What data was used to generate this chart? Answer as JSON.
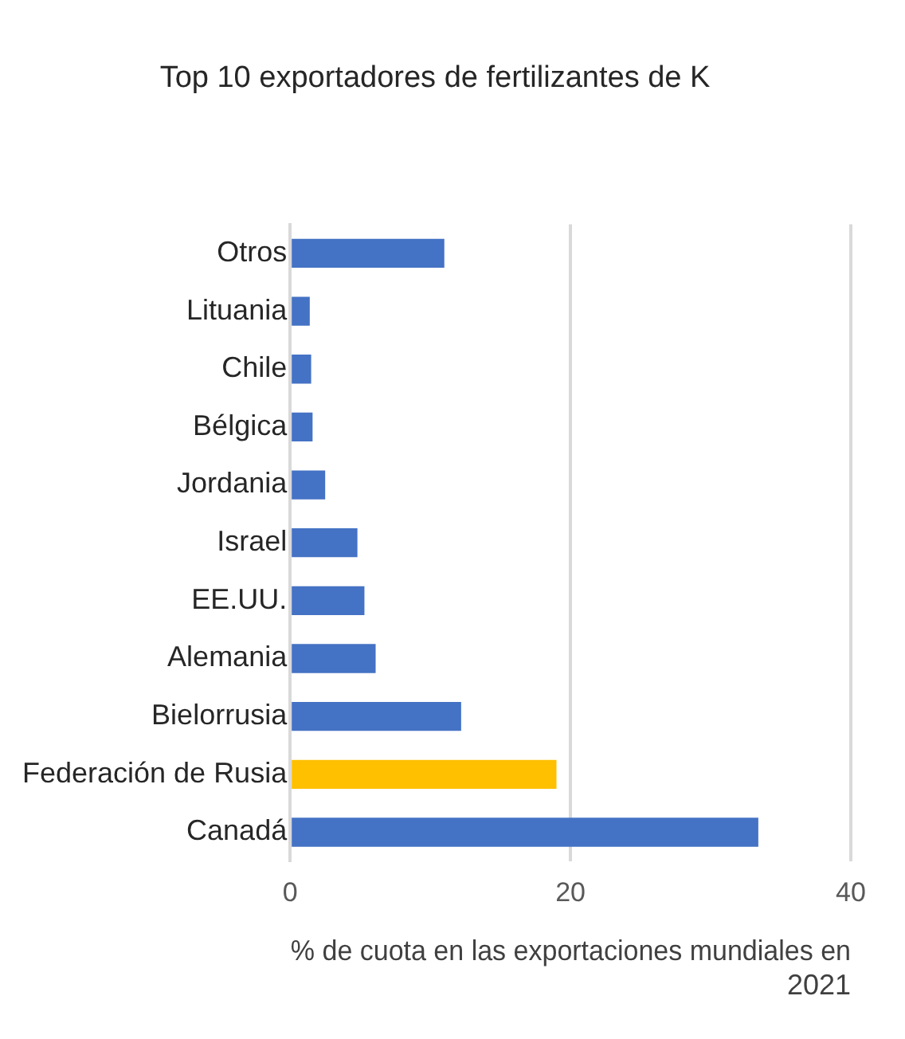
{
  "chart_data": {
    "type": "bar",
    "orientation": "horizontal",
    "title": "Top 10 exportadores de fertilizantes de K",
    "xlabel": "% de cuota en las exportaciones mundiales en 2021",
    "categories": [
      "Otros",
      "Lituania",
      "Chile",
      "Bélgica",
      "Jordania",
      "Israel",
      "EE.UU.",
      "Alemania",
      "Bielorrusia",
      "Federación de Rusia",
      "Canadá"
    ],
    "values": [
      11.0,
      1.4,
      1.5,
      1.6,
      2.5,
      4.8,
      5.3,
      6.1,
      12.2,
      19.0,
      33.4
    ],
    "colors": [
      "#4472c4",
      "#4472c4",
      "#4472c4",
      "#4472c4",
      "#4472c4",
      "#4472c4",
      "#4472c4",
      "#4472c4",
      "#4472c4",
      "#ffc000",
      "#4472c4"
    ],
    "xlim": [
      0,
      40
    ],
    "xticks": [
      0,
      20,
      40
    ],
    "grid": "x",
    "legend": false
  }
}
